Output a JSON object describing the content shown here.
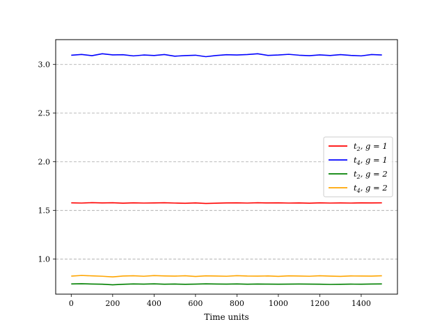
{
  "chart_data": {
    "type": "line",
    "title": "",
    "xlabel": "Time units",
    "ylabel": "",
    "xlim": [
      -75,
      1575
    ],
    "ylim": [
      0.64,
      3.255
    ],
    "xticks": [
      0,
      200,
      400,
      600,
      800,
      1000,
      1200,
      1400
    ],
    "xtick_labels": [
      "0",
      "200",
      "400",
      "600",
      "800",
      "1000",
      "1200",
      "1400"
    ],
    "yticks": [
      1.0,
      1.5,
      2.0,
      2.5,
      3.0
    ],
    "ytick_labels": [
      "1.0",
      "1.5",
      "2.0",
      "2.5",
      "3.0"
    ],
    "grid": "y-dashed",
    "legend_position": "center-right",
    "series": [
      {
        "name": "t₂, g = 1",
        "legend_main": "t",
        "legend_sub": "2",
        "legend_rest": ", g = 1",
        "color": "#ff0000",
        "x": [
          0,
          50,
          100,
          150,
          200,
          250,
          300,
          350,
          400,
          450,
          500,
          550,
          600,
          650,
          700,
          750,
          800,
          850,
          900,
          950,
          1000,
          1050,
          1100,
          1150,
          1200,
          1250,
          1300,
          1350,
          1400,
          1450,
          1500
        ],
        "values": [
          1.578,
          1.576,
          1.58,
          1.577,
          1.579,
          1.575,
          1.578,
          1.576,
          1.577,
          1.579,
          1.576,
          1.574,
          1.577,
          1.572,
          1.575,
          1.577,
          1.578,
          1.576,
          1.579,
          1.577,
          1.578,
          1.576,
          1.577,
          1.575,
          1.578,
          1.576,
          1.577,
          1.576,
          1.578,
          1.577,
          1.578
        ]
      },
      {
        "name": "t₄, g = 1",
        "legend_main": "t",
        "legend_sub": "4",
        "legend_rest": ", g = 1",
        "color": "#0000ff",
        "x": [
          0,
          50,
          100,
          150,
          200,
          250,
          300,
          350,
          400,
          450,
          500,
          550,
          600,
          650,
          700,
          750,
          800,
          850,
          900,
          950,
          1000,
          1050,
          1100,
          1150,
          1200,
          1250,
          1300,
          1350,
          1400,
          1450,
          1500
        ],
        "values": [
          3.095,
          3.103,
          3.09,
          3.11,
          3.098,
          3.1,
          3.088,
          3.097,
          3.092,
          3.102,
          3.085,
          3.091,
          3.095,
          3.08,
          3.092,
          3.1,
          3.097,
          3.102,
          3.11,
          3.093,
          3.097,
          3.104,
          3.095,
          3.09,
          3.098,
          3.092,
          3.101,
          3.093,
          3.088,
          3.102,
          3.097
        ]
      },
      {
        "name": "t₂, g = 2",
        "legend_main": "t",
        "legend_sub": "2",
        "legend_rest": ", g = 2",
        "color": "#008000",
        "x": [
          0,
          50,
          100,
          150,
          200,
          250,
          300,
          350,
          400,
          450,
          500,
          550,
          600,
          650,
          700,
          750,
          800,
          850,
          900,
          950,
          1000,
          1050,
          1100,
          1150,
          1200,
          1250,
          1300,
          1350,
          1400,
          1450,
          1500
        ],
        "values": [
          0.745,
          0.747,
          0.744,
          0.742,
          0.736,
          0.741,
          0.745,
          0.743,
          0.746,
          0.742,
          0.744,
          0.741,
          0.743,
          0.746,
          0.744,
          0.743,
          0.745,
          0.742,
          0.744,
          0.743,
          0.742,
          0.743,
          0.744,
          0.743,
          0.742,
          0.74,
          0.741,
          0.743,
          0.742,
          0.744,
          0.745
        ]
      },
      {
        "name": "t₄, g = 2",
        "legend_main": "t",
        "legend_sub": "4",
        "legend_rest": ", g = 2",
        "color": "#ffa500",
        "x": [
          0,
          50,
          100,
          150,
          200,
          250,
          300,
          350,
          400,
          450,
          500,
          550,
          600,
          650,
          700,
          750,
          800,
          850,
          900,
          950,
          1000,
          1050,
          1100,
          1150,
          1200,
          1250,
          1300,
          1350,
          1400,
          1450,
          1500
        ],
        "values": [
          0.825,
          0.832,
          0.828,
          0.824,
          0.817,
          0.826,
          0.829,
          0.824,
          0.831,
          0.827,
          0.825,
          0.829,
          0.822,
          0.828,
          0.826,
          0.824,
          0.83,
          0.826,
          0.825,
          0.827,
          0.823,
          0.828,
          0.826,
          0.824,
          0.829,
          0.825,
          0.823,
          0.827,
          0.826,
          0.825,
          0.829
        ]
      }
    ]
  }
}
